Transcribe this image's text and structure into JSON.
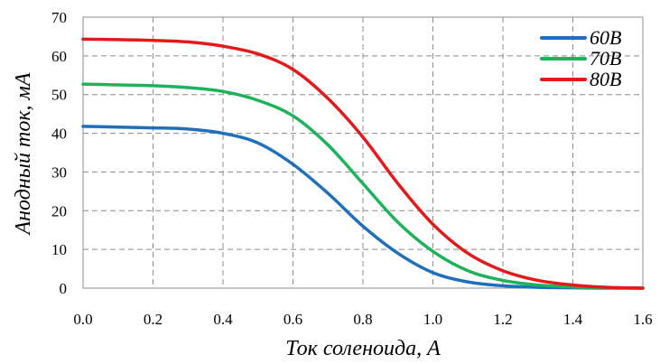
{
  "chart_data": {
    "type": "line",
    "xlabel": "Ток соленоида, А",
    "ylabel": "Анодный ток, мА",
    "xlim": [
      0,
      1.6
    ],
    "ylim": [
      0,
      70
    ],
    "x_ticks": [
      "0.0",
      "0.2",
      "0.4",
      "0.6",
      "0.8",
      "1.0",
      "1.2",
      "1.4",
      "1.6"
    ],
    "y_ticks": [
      "0",
      "10",
      "20",
      "30",
      "40",
      "50",
      "60",
      "70"
    ],
    "x_tick_values": [
      0,
      0.2,
      0.4,
      0.6,
      0.8,
      1.0,
      1.2,
      1.4,
      1.6
    ],
    "y_tick_values": [
      0,
      10,
      20,
      30,
      40,
      50,
      60,
      70
    ],
    "grid": true,
    "legend_position": "top-right",
    "series": [
      {
        "name": "60В",
        "color": "#1f6fba",
        "x": [
          0.0,
          0.1,
          0.2,
          0.3,
          0.4,
          0.5,
          0.6,
          0.7,
          0.8,
          0.9,
          1.0,
          1.1,
          1.2,
          1.3,
          1.4,
          1.5,
          1.6
        ],
        "y": [
          41.8,
          41.6,
          41.4,
          41.1,
          40.0,
          37.5,
          32.0,
          24.5,
          16.0,
          9.0,
          4.0,
          1.6,
          0.6,
          0.2,
          0.1,
          0.0,
          0.0
        ]
      },
      {
        "name": "70В",
        "color": "#1db35a",
        "x": [
          0.0,
          0.1,
          0.2,
          0.3,
          0.4,
          0.5,
          0.6,
          0.7,
          0.8,
          0.9,
          1.0,
          1.1,
          1.2,
          1.3,
          1.4,
          1.5,
          1.6
        ],
        "y": [
          52.7,
          52.5,
          52.3,
          51.8,
          50.8,
          48.5,
          44.5,
          37.0,
          27.0,
          17.0,
          9.5,
          4.5,
          2.0,
          0.8,
          0.3,
          0.1,
          0.0
        ]
      },
      {
        "name": "80В",
        "color": "#e31a1c",
        "x": [
          0.0,
          0.1,
          0.2,
          0.3,
          0.4,
          0.5,
          0.6,
          0.7,
          0.8,
          0.9,
          1.0,
          1.1,
          1.2,
          1.3,
          1.4,
          1.5,
          1.6
        ],
        "y": [
          64.3,
          64.2,
          64.0,
          63.6,
          62.5,
          60.5,
          56.5,
          49.0,
          39.0,
          27.0,
          16.5,
          9.0,
          4.5,
          2.0,
          0.8,
          0.2,
          0.0
        ]
      }
    ]
  }
}
